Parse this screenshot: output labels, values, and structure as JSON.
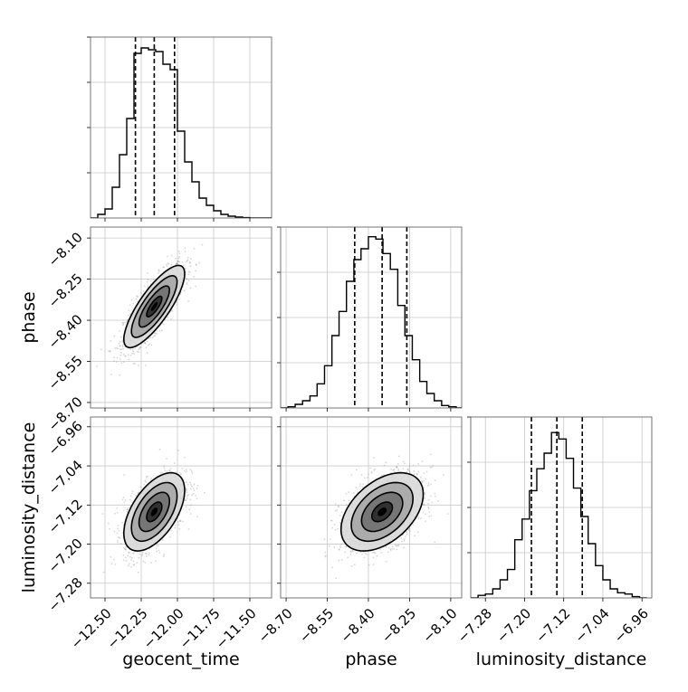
{
  "chart_data": {
    "type": "corner",
    "parameters": [
      "geocent_time",
      "phase",
      "luminosity_distance"
    ],
    "ticks": {
      "geocent_time": {
        "values": [
          -12.5,
          -12.25,
          -12.0,
          -11.75,
          -11.5
        ],
        "labels": [
          "−12.50",
          "−12.25",
          "−12.00",
          "−11.75",
          "−11.50"
        ],
        "range": [
          -12.6,
          -11.35
        ]
      },
      "phase": {
        "values": [
          -8.7,
          -8.55,
          -8.4,
          -8.25,
          -8.1
        ],
        "labels": [
          "−8.70",
          "−8.55",
          "−8.40",
          "−8.25",
          "−8.10"
        ],
        "range": [
          -8.72,
          -8.06
        ]
      },
      "luminosity_distance": {
        "values": [
          -7.28,
          -7.2,
          -7.12,
          -7.04,
          -6.96
        ],
        "labels": [
          "−7.28",
          "−7.20",
          "−7.12",
          "−7.04",
          "−6.96"
        ],
        "range": [
          -7.31,
          -6.94
        ]
      }
    },
    "hist_max": [
      0.1,
      0.15,
      0.14
    ],
    "quantiles": {
      "geocent_time": [
        -12.29,
        -12.16,
        -12.02
      ],
      "phase": [
        -8.45,
        -8.35,
        -8.26
      ],
      "luminosity_distance": [
        -7.186,
        -7.134,
        -7.082
      ]
    },
    "histograms": {
      "geocent_time": {
        "edges": [
          -12.6,
          -12.55,
          -12.5,
          -12.45,
          -12.4,
          -12.35,
          -12.3,
          -12.25,
          -12.2,
          -12.15,
          -12.1,
          -12.05,
          -12.0,
          -11.95,
          -11.9,
          -11.85,
          -11.8,
          -11.75,
          -11.7,
          -11.65,
          -11.6,
          -11.55,
          -11.5,
          -11.45,
          -11.4,
          -11.35
        ],
        "counts": [
          0.0,
          0.002,
          0.005,
          0.017,
          0.035,
          0.055,
          0.091,
          0.094,
          0.093,
          0.092,
          0.085,
          0.082,
          0.048,
          0.031,
          0.02,
          0.011,
          0.007,
          0.004,
          0.002,
          0.001,
          0.0005,
          0.0002,
          0.0,
          0.0,
          0.0
        ]
      },
      "phase": {
        "edges": [
          -8.72,
          -8.693,
          -8.667,
          -8.64,
          -8.613,
          -8.587,
          -8.56,
          -8.533,
          -8.507,
          -8.48,
          -8.453,
          -8.427,
          -8.4,
          -8.373,
          -8.347,
          -8.32,
          -8.293,
          -8.267,
          -8.24,
          -8.213,
          -8.187,
          -8.16,
          -8.133,
          -8.107,
          -8.08,
          -8.06
        ],
        "counts": [
          0.0,
          0.001,
          0.003,
          0.006,
          0.01,
          0.02,
          0.035,
          0.06,
          0.08,
          0.105,
          0.123,
          0.132,
          0.142,
          0.14,
          0.128,
          0.115,
          0.085,
          0.06,
          0.04,
          0.022,
          0.012,
          0.006,
          0.002,
          0.001,
          0.0
        ]
      },
      "luminosity_distance": {
        "edges": [
          -7.31,
          -7.295,
          -7.28,
          -7.265,
          -7.25,
          -7.235,
          -7.22,
          -7.205,
          -7.19,
          -7.175,
          -7.16,
          -7.145,
          -7.13,
          -7.115,
          -7.1,
          -7.085,
          -7.07,
          -7.055,
          -7.04,
          -7.025,
          -7.01,
          -6.995,
          -6.98,
          -6.965,
          -6.95
        ],
        "counts": [
          0.0,
          0.002,
          0.003,
          0.007,
          0.014,
          0.022,
          0.045,
          0.061,
          0.083,
          0.1,
          0.112,
          0.128,
          0.123,
          0.108,
          0.085,
          0.063,
          0.042,
          0.025,
          0.014,
          0.007,
          0.004,
          0.003,
          0.001,
          0.0
        ]
      }
    },
    "correlations": {
      "phase|geocent_time": 0.8,
      "luminosity_distance|geocent_time": 0.55,
      "luminosity_distance|phase": 0.45
    },
    "sigma": {
      "geocent_time": 0.105,
      "phase": 0.075,
      "luminosity_distance": 0.04
    },
    "mean": {
      "geocent_time": -12.16,
      "phase": -8.35,
      "luminosity_distance": -7.134
    },
    "contour_levels_sigma": [
      0.5,
      1.0,
      1.5,
      2.0
    ],
    "grid": true,
    "line_color": "#000000",
    "grid_color": "#c8c8c8",
    "scatter_color": "#8c8c8c"
  }
}
